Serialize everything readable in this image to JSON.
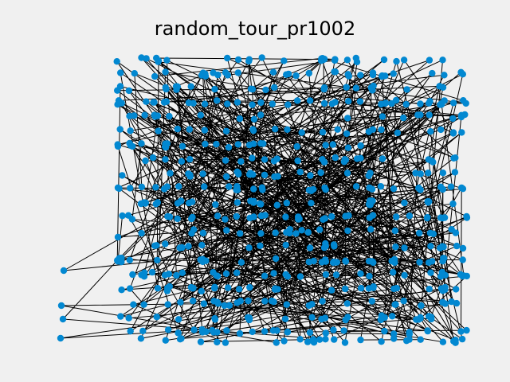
{
  "title": "random_tour_pr1002",
  "colors": {
    "background": "#f0f0f0",
    "node": "#0288d1",
    "edge": "#000000"
  },
  "chart_data": {
    "type": "scatter",
    "title": "random_tour_pr1002",
    "xlabel": "",
    "ylabel": "",
    "axes_visible": false,
    "grid": false,
    "node_count": 1002,
    "tour": "random",
    "node_grid": {
      "columns": [
        150,
        165,
        180,
        195,
        210,
        225,
        240,
        255,
        270,
        285,
        300,
        315,
        330,
        345,
        360,
        375,
        390,
        405,
        420,
        435,
        450,
        465,
        480,
        495,
        510,
        525,
        540,
        555,
        570,
        582
      ],
      "rows": [
        75,
        93,
        111,
        129,
        147,
        165,
        183,
        201,
        219,
        237,
        255,
        273,
        291,
        309,
        327,
        345,
        363,
        381,
        399,
        417,
        428
      ]
    },
    "outlier_nodes": [
      [
        80,
        340
      ],
      [
        77,
        384
      ],
      [
        79,
        401
      ],
      [
        76,
        425
      ],
      [
        148,
        236
      ],
      [
        148,
        298
      ],
      [
        581,
        312
      ],
      [
        578,
        345
      ]
    ],
    "seed": 1002,
    "points_drawn": 620
  }
}
